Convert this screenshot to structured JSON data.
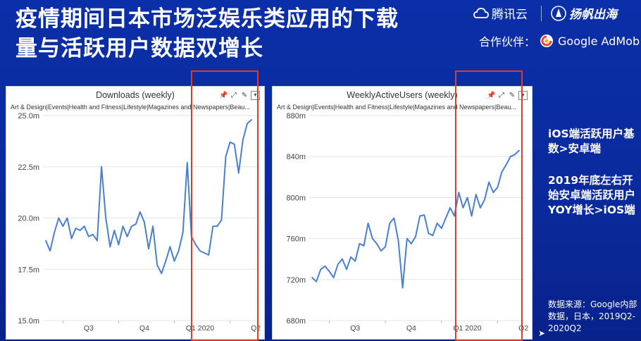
{
  "slide": {
    "title": "疫情期间日本市场泛娱乐类应用的下载量与活跃用户数据双增长",
    "brand_tencent": "腾讯云",
    "brand_yangfan": "扬帆出海",
    "partner_label": "合作伙伴：",
    "partner_name": "Google AdMob",
    "note1": "iOS端活跃用户基数>安卓端",
    "note2": "2019年底左右开始安卓端活跃用户YOY增长>iOS端",
    "source": "数据来源：Google内部数据，日本，2019Q2-2020Q2"
  },
  "colors": {
    "background": "#0a2a9c",
    "line": "#4a7fd0",
    "highlight": "#e03a2a"
  },
  "chart_data": [
    {
      "type": "line",
      "title": "Downloads (weekly)",
      "subtitle": "Art & Design|Events|Health and Fitness|Lifestyle|Magazines and Newspapers|Beau...",
      "ylim": [
        15.0,
        25.0
      ],
      "yticks": [
        15.0,
        17.5,
        20.0,
        22.5,
        25.0
      ],
      "ytick_labels": [
        "15.0m",
        "17.5m",
        "20.0m",
        "22.5m",
        "25.0m"
      ],
      "xtick_labels": [
        {
          "label": "Q3",
          "week": 10
        },
        {
          "label": "Q4",
          "week": 23
        },
        {
          "label": "Q1 2020",
          "week": 36
        },
        {
          "label": "Q2",
          "week": 49
        }
      ],
      "x": [
        0,
        1,
        2,
        3,
        4,
        5,
        6,
        7,
        8,
        9,
        10,
        11,
        12,
        13,
        14,
        15,
        16,
        17,
        18,
        19,
        20,
        21,
        22,
        23,
        24,
        25,
        26,
        27,
        28,
        29,
        30,
        31,
        32,
        33,
        34,
        35,
        36,
        37,
        38,
        39,
        40,
        41,
        42,
        43,
        44,
        45,
        46,
        47,
        48
      ],
      "values": [
        18.9,
        18.4,
        19.3,
        20.0,
        19.6,
        20.0,
        19.0,
        19.5,
        19.4,
        19.6,
        19.1,
        19.2,
        18.9,
        22.5,
        20.0,
        18.6,
        19.4,
        18.7,
        19.6,
        19.1,
        19.6,
        19.7,
        20.3,
        19.8,
        18.5,
        19.6,
        17.7,
        17.3,
        17.9,
        18.6,
        17.9,
        18.4,
        19.3,
        22.7,
        19.1,
        18.7,
        18.4,
        18.3,
        18.2,
        19.6,
        19.6,
        19.9,
        23.0,
        23.7,
        23.6,
        22.2,
        23.8,
        24.6,
        24.8
      ]
    },
    {
      "type": "line",
      "title": "WeeklyActiveUsers (weekly)",
      "subtitle": "Art & Design|Events|Health and Fitness|Lifestyle|Magazines and Newspapers|Beau...",
      "ylim": [
        680,
        880
      ],
      "yticks": [
        680,
        720,
        760,
        800,
        840,
        880
      ],
      "ytick_labels": [
        "680m",
        "720m",
        "760m",
        "800m",
        "840m",
        "880m"
      ],
      "xtick_labels": [
        {
          "label": "Q3",
          "week": 10
        },
        {
          "label": "Q4",
          "week": 23
        },
        {
          "label": "Q1 2020",
          "week": 36
        },
        {
          "label": "Q2",
          "week": 49
        }
      ],
      "x": [
        0,
        1,
        2,
        3,
        4,
        5,
        6,
        7,
        8,
        9,
        10,
        11,
        12,
        13,
        14,
        15,
        16,
        17,
        18,
        19,
        20,
        21,
        22,
        23,
        24,
        25,
        26,
        27,
        28,
        29,
        30,
        31,
        32,
        33,
        34,
        35,
        36,
        37,
        38,
        39,
        40,
        41,
        42,
        43,
        44,
        45,
        46,
        47,
        48
      ],
      "values": [
        722,
        718,
        730,
        733,
        728,
        722,
        735,
        740,
        730,
        742,
        738,
        755,
        753,
        775,
        760,
        755,
        748,
        752,
        775,
        780,
        758,
        712,
        760,
        755,
        762,
        782,
        783,
        765,
        763,
        775,
        770,
        780,
        790,
        782,
        805,
        790,
        800,
        782,
        803,
        790,
        798,
        815,
        805,
        810,
        825,
        832,
        840,
        842,
        846
      ]
    }
  ]
}
